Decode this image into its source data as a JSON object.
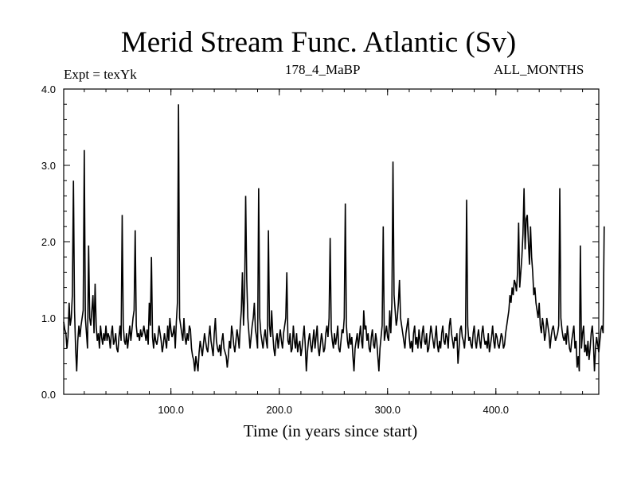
{
  "chart_data": {
    "type": "line",
    "title": "Merid Stream Func. Atlantic (Sv)",
    "header_left": "Expt = texYk",
    "header_center": "178_4_MaBP",
    "header_right": "ALL_MONTHS",
    "xlabel": "Time (in years since start)",
    "ylabel": "",
    "xlim": [
      1,
      495
    ],
    "ylim": [
      0.0,
      4.0
    ],
    "xticks": [
      100,
      200,
      300,
      400
    ],
    "xtick_labels": [
      "100.0",
      "200.0",
      "300.0",
      "400.0"
    ],
    "yticks": [
      0,
      1,
      2,
      3,
      4
    ],
    "ytick_labels": [
      "0.0",
      "1.0",
      "2.0",
      "3.0",
      "4.0"
    ],
    "grid": false,
    "color": "#000000",
    "series": [
      {
        "x_start": 1,
        "x_step": 1,
        "values": [
          0.95,
          0.85,
          0.8,
          0.6,
          0.75,
          1.2,
          0.9,
          1.0,
          1.3,
          2.8,
          1.1,
          0.6,
          0.3,
          0.7,
          0.9,
          0.75,
          0.9,
          1.0,
          1.1,
          3.2,
          1.0,
          0.8,
          0.6,
          1.95,
          1.0,
          0.9,
          1.1,
          1.3,
          0.8,
          1.45,
          0.9,
          0.7,
          0.8,
          0.6,
          0.9,
          0.75,
          0.65,
          0.8,
          0.7,
          0.9,
          0.7,
          0.8,
          0.75,
          0.6,
          0.8,
          0.9,
          0.65,
          0.7,
          0.8,
          0.6,
          0.55,
          0.75,
          0.9,
          0.7,
          2.35,
          0.9,
          0.7,
          0.65,
          0.8,
          0.6,
          0.75,
          0.9,
          0.7,
          0.85,
          1.0,
          1.1,
          2.15,
          0.9,
          0.75,
          0.8,
          0.7,
          0.85,
          0.75,
          0.8,
          0.9,
          0.8,
          0.7,
          0.85,
          0.65,
          1.2,
          0.9,
          1.8,
          0.75,
          0.6,
          0.8,
          0.7,
          0.65,
          0.75,
          0.9,
          0.8,
          0.7,
          0.55,
          0.65,
          0.8,
          0.7,
          0.6,
          0.9,
          0.7,
          1.0,
          0.85,
          0.75,
          0.8,
          0.9,
          0.6,
          0.95,
          1.2,
          3.8,
          1.0,
          0.9,
          0.8,
          0.7,
          1.0,
          0.75,
          0.65,
          0.8,
          0.7,
          0.9,
          0.85,
          0.6,
          0.5,
          0.45,
          0.3,
          0.5,
          0.4,
          0.3,
          0.55,
          0.7,
          0.6,
          0.5,
          0.65,
          0.8,
          0.7,
          0.6,
          0.55,
          0.75,
          0.9,
          0.7,
          0.6,
          0.5,
          0.8,
          1.0,
          0.7,
          0.6,
          0.55,
          0.65,
          0.5,
          0.7,
          0.8,
          0.6,
          0.55,
          0.5,
          0.35,
          0.5,
          0.7,
          0.6,
          0.9,
          0.8,
          0.65,
          0.55,
          0.7,
          0.85,
          0.75,
          0.6,
          0.9,
          1.1,
          1.6,
          0.9,
          1.3,
          2.6,
          1.5,
          1.0,
          0.8,
          0.6,
          0.75,
          0.9,
          1.0,
          1.2,
          0.85,
          0.75,
          0.6,
          2.7,
          1.0,
          0.8,
          0.7,
          0.6,
          0.75,
          0.85,
          0.7,
          0.6,
          2.15,
          0.9,
          0.75,
          1.1,
          0.8,
          0.6,
          0.5,
          0.7,
          0.8,
          0.6,
          0.75,
          0.85,
          0.7,
          0.6,
          0.8,
          0.9,
          1.0,
          1.6,
          0.7,
          0.65,
          0.8,
          0.55,
          0.6,
          0.9,
          0.7,
          0.6,
          0.8,
          0.55,
          0.65,
          0.7,
          0.5,
          0.6,
          0.75,
          0.9,
          0.65,
          0.3,
          0.55,
          0.7,
          0.8,
          0.65,
          0.55,
          0.7,
          0.85,
          0.6,
          0.75,
          0.9,
          0.6,
          0.5,
          0.65,
          0.8,
          0.7,
          0.55,
          0.6,
          0.8,
          0.9,
          0.75,
          1.0,
          2.05,
          0.85,
          0.7,
          0.6,
          0.8,
          0.65,
          0.75,
          0.9,
          0.6,
          0.55,
          0.7,
          0.85,
          0.8,
          1.0,
          2.5,
          0.9,
          0.7,
          0.6,
          0.8,
          0.65,
          0.75,
          0.5,
          0.3,
          0.6,
          0.7,
          0.8,
          0.6,
          0.75,
          0.9,
          0.7,
          0.6,
          1.1,
          0.85,
          0.9,
          0.7,
          0.8,
          0.6,
          0.55,
          0.75,
          0.85,
          0.65,
          0.6,
          0.8,
          0.7,
          0.5,
          0.3,
          0.6,
          0.75,
          0.9,
          2.2,
          0.7,
          0.8,
          0.9,
          0.75,
          0.7,
          1.1,
          0.8,
          1.2,
          3.05,
          1.3,
          1.1,
          0.9,
          1.0,
          1.2,
          1.5,
          1.0,
          0.9,
          0.8,
          0.7,
          0.6,
          0.8,
          0.9,
          1.0,
          0.75,
          0.6,
          0.7,
          0.55,
          0.8,
          0.9,
          0.65,
          0.75,
          0.6,
          0.85,
          0.7,
          0.6,
          0.8,
          0.9,
          0.7,
          0.65,
          0.8,
          0.55,
          0.6,
          0.75,
          0.9,
          0.8,
          0.7,
          0.6,
          0.75,
          0.9,
          0.65,
          0.55,
          0.7,
          0.6,
          0.8,
          0.9,
          0.7,
          0.65,
          0.8,
          0.75,
          0.6,
          0.9,
          1.0,
          0.8,
          0.7,
          0.6,
          0.75,
          0.7,
          0.8,
          0.4,
          0.6,
          0.85,
          0.9,
          0.75,
          0.7,
          0.6,
          0.8,
          2.55,
          0.9,
          0.7,
          0.75,
          0.65,
          0.6,
          0.8,
          0.9,
          0.7,
          0.6,
          0.75,
          0.85,
          0.7,
          0.6,
          0.8,
          0.9,
          0.75,
          0.65,
          0.7,
          0.6,
          0.8,
          0.55,
          0.65,
          0.75,
          0.9,
          0.7,
          0.6,
          0.8,
          0.75,
          0.65,
          0.6,
          0.7,
          0.8,
          0.75,
          0.6,
          0.65,
          0.8,
          0.9,
          1.0,
          1.1,
          1.3,
          1.2,
          1.4,
          1.3,
          1.5,
          1.45,
          1.35,
          1.6,
          2.25,
          1.4,
          1.6,
          1.8,
          2.1,
          2.7,
          1.9,
          2.3,
          2.35,
          2.0,
          1.7,
          2.2,
          1.8,
          1.6,
          1.3,
          1.4,
          1.2,
          1.1,
          1.0,
          1.2,
          0.9,
          0.8,
          1.0,
          0.9,
          0.7,
          0.8,
          1.0,
          0.9,
          0.8,
          0.6,
          0.75,
          0.85,
          0.9,
          0.8,
          0.7,
          0.75,
          0.8,
          0.9,
          2.7,
          1.0,
          0.85,
          0.75,
          0.7,
          0.8,
          0.65,
          0.9,
          0.75,
          0.6,
          0.55,
          0.7,
          0.8,
          0.9,
          0.6,
          0.7,
          0.35,
          0.5,
          0.3,
          1.95,
          0.6,
          0.8,
          0.9,
          0.55,
          0.65,
          0.5,
          0.7,
          0.45,
          0.6,
          0.8,
          0.9,
          0.7,
          0.3,
          0.6,
          0.75,
          0.65,
          0.55,
          0.7,
          0.85,
          0.9,
          0.8,
          2.2
        ]
      }
    ]
  }
}
